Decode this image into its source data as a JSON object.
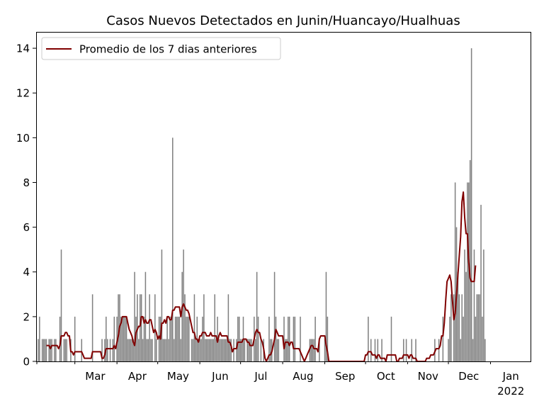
{
  "chart_data": {
    "type": "bar",
    "title": "Casos Nuevos Detectados en Junin/Huancayo/Hualhuas",
    "xlabel": "",
    "ylabel": "",
    "ylim": [
      0,
      14.7
    ],
    "x_range": [
      "2021-02-01",
      "2022-01-31"
    ],
    "yticks": [
      0,
      2,
      4,
      6,
      8,
      10,
      12,
      14
    ],
    "xticks": [
      {
        "date": "2021-03-01",
        "label": "Mar"
      },
      {
        "date": "2021-04-01",
        "label": "Apr"
      },
      {
        "date": "2021-05-01",
        "label": "May"
      },
      {
        "date": "2021-06-01",
        "label": "Jun"
      },
      {
        "date": "2021-07-01",
        "label": "Jul"
      },
      {
        "date": "2021-08-01",
        "label": "Aug"
      },
      {
        "date": "2021-09-01",
        "label": "Sep"
      },
      {
        "date": "2021-10-01",
        "label": "Oct"
      },
      {
        "date": "2021-11-01",
        "label": "Nov"
      },
      {
        "date": "2021-12-01",
        "label": "Dec"
      },
      {
        "date": "2022-01-01",
        "label": "Jan"
      }
    ],
    "year_label": "2022",
    "grid": false,
    "legend": {
      "position": "top-left",
      "entries": [
        "Promedio de los 7 dias anteriores"
      ]
    },
    "colors": {
      "bars": "#808080",
      "line": "#800000"
    },
    "series": [
      {
        "kind": "bar",
        "start": "2021-02-01",
        "values": [
          0,
          1,
          2,
          0,
          1,
          1,
          1,
          1,
          0,
          1,
          1,
          1,
          0,
          1,
          1,
          0,
          0,
          2,
          5,
          0,
          1,
          1,
          1,
          0,
          0,
          1,
          0,
          0,
          2,
          0,
          0,
          0,
          0,
          1,
          0,
          0,
          0,
          0,
          0,
          0,
          0,
          3,
          0,
          0,
          0,
          0,
          0,
          0,
          1,
          0,
          1,
          2,
          1,
          0,
          1,
          0,
          1,
          2,
          0,
          2,
          3,
          3,
          2,
          2,
          2,
          2,
          2,
          1,
          1,
          1,
          1,
          1,
          4,
          2,
          3,
          1,
          3,
          3,
          1,
          2,
          4,
          1,
          1,
          3,
          1,
          1,
          0,
          3,
          1,
          0,
          2,
          2,
          5,
          1,
          1,
          1,
          2,
          1,
          2,
          2,
          10,
          1,
          2,
          2,
          2,
          2,
          1,
          4,
          5,
          3,
          2,
          2,
          2,
          0,
          1,
          1,
          3,
          1,
          2,
          1,
          1,
          1,
          2,
          3,
          1,
          1,
          1,
          1,
          1,
          1,
          1,
          3,
          1,
          2,
          1,
          1,
          1,
          1,
          1,
          1,
          1,
          3,
          1,
          1,
          0,
          1,
          0,
          1,
          2,
          2,
          1,
          1,
          2,
          1,
          0,
          1,
          1,
          1,
          1,
          0,
          2,
          1,
          4,
          2,
          0,
          1,
          0,
          1,
          0,
          0,
          0,
          2,
          1,
          1,
          0,
          4,
          2,
          1,
          1,
          0,
          0,
          0,
          2,
          1,
          1,
          2,
          2,
          0,
          0,
          2,
          2,
          0,
          0,
          0,
          2,
          0,
          0,
          0,
          0,
          0,
          0,
          1,
          1,
          1,
          1,
          2,
          0,
          0,
          1,
          0,
          0,
          0,
          1,
          4,
          2,
          0,
          0,
          0,
          0,
          0,
          0,
          0,
          0,
          0,
          0,
          0,
          0,
          0,
          0,
          0,
          0,
          0,
          0,
          0,
          0,
          0,
          0,
          0,
          0,
          0,
          0,
          0,
          0,
          0,
          2,
          0,
          1,
          0,
          0,
          1,
          0,
          1,
          0,
          0,
          1,
          0,
          0,
          0,
          0,
          0,
          0,
          2,
          0,
          0,
          0,
          0,
          0,
          0,
          0,
          0,
          1,
          0,
          1,
          0,
          0,
          0,
          1,
          0,
          0,
          1,
          0,
          0,
          0,
          0,
          0,
          0,
          0,
          0,
          0,
          0,
          0,
          0,
          0,
          1,
          0,
          0,
          1,
          0,
          0,
          2,
          0,
          0,
          0,
          1,
          2,
          3,
          0,
          3,
          8,
          6,
          4,
          3,
          1,
          3,
          2,
          5,
          4,
          8,
          8,
          9,
          14,
          1,
          5,
          2,
          3,
          3,
          3,
          7,
          2,
          5,
          1
        ]
      },
      {
        "kind": "line",
        "name": "Promedio de los 7 dias anteriores",
        "start": "2021-02-01",
        "values": [
          null,
          null,
          null,
          null,
          null,
          null,
          null,
          0.71,
          0.71,
          0.71,
          0.57,
          0.71,
          0.71,
          0.71,
          0.71,
          0.71,
          0.57,
          0.71,
          1.14,
          1.14,
          1.14,
          1.29,
          1.29,
          1.14,
          1.14,
          0.43,
          0.43,
          0.29,
          0.43,
          0.43,
          0.43,
          0.43,
          0.43,
          0.43,
          0.29,
          0.14,
          0.14,
          0.14,
          0.14,
          0.14,
          0.14,
          0.43,
          0.43,
          0.43,
          0.43,
          0.43,
          0.43,
          0.43,
          0.14,
          0.14,
          0.29,
          0.57,
          0.57,
          0.57,
          0.57,
          0.57,
          0.57,
          0.71,
          0.57,
          0.86,
          1.14,
          1.57,
          1.71,
          2.0,
          2.0,
          2.0,
          2.0,
          1.71,
          1.43,
          1.29,
          1.14,
          0.86,
          0.71,
          1.29,
          1.43,
          1.57,
          1.57,
          2.0,
          2.0,
          1.71,
          1.86,
          1.71,
          1.71,
          1.86,
          1.86,
          1.57,
          1.29,
          1.43,
          1.29,
          1.0,
          1.14,
          1.0,
          1.71,
          1.71,
          1.86,
          1.71,
          2.0,
          2.0,
          1.86,
          1.86,
          2.29,
          2.29,
          2.43,
          2.43,
          2.43,
          2.43,
          2.0,
          2.43,
          2.57,
          2.43,
          2.29,
          2.29,
          2.14,
          1.86,
          1.57,
          1.29,
          1.29,
          1.0,
          1.0,
          0.86,
          1.14,
          1.14,
          1.29,
          1.29,
          1.29,
          1.14,
          1.14,
          1.14,
          1.29,
          1.14,
          1.14,
          1.14,
          1.14,
          0.86,
          1.14,
          1.29,
          1.14,
          1.14,
          1.14,
          1.14,
          1.14,
          0.86,
          0.86,
          0.71,
          0.43,
          0.57,
          0.57,
          0.57,
          0.86,
          0.86,
          0.86,
          0.86,
          1.0,
          1.0,
          1.0,
          0.86,
          0.86,
          0.71,
          0.71,
          0.71,
          1.0,
          1.29,
          1.43,
          1.29,
          1.29,
          1.0,
          0.86,
          0.57,
          0.14,
          0.0,
          0.14,
          0.29,
          0.29,
          0.43,
          0.71,
          1.0,
          1.43,
          1.29,
          1.14,
          1.14,
          1.14,
          1.14,
          0.57,
          0.86,
          0.86,
          0.86,
          0.71,
          0.86,
          0.86,
          0.57,
          0.57,
          0.57,
          0.57,
          0.57,
          0.43,
          0.29,
          0.14,
          0.0,
          0.14,
          0.29,
          0.43,
          0.57,
          0.71,
          0.71,
          0.57,
          0.57,
          0.57,
          0.43,
          1.0,
          1.14,
          1.14,
          1.14,
          1.14,
          0.71,
          0.43,
          0.0,
          0.0,
          0.0,
          0.0,
          0.0,
          0.0,
          0.0,
          0.0,
          0.0,
          0.0,
          0.0,
          0.0,
          0.0,
          0.0,
          0.0,
          0.0,
          0.0,
          0.0,
          0.0,
          0.0,
          0.0,
          0.0,
          0.0,
          0.0,
          0.0,
          0.0,
          0.0,
          0.29,
          0.29,
          0.43,
          0.43,
          0.43,
          0.29,
          0.29,
          0.29,
          0.14,
          0.29,
          0.29,
          0.14,
          0.14,
          0.14,
          0.14,
          0.0,
          0.29,
          0.29,
          0.29,
          0.29,
          0.29,
          0.29,
          0.29,
          0.0,
          0.0,
          0.14,
          0.14,
          0.14,
          0.29,
          0.29,
          0.29,
          0.29,
          0.14,
          0.29,
          0.29,
          0.14,
          0.14,
          0.14,
          0.0,
          0.0,
          0.0,
          0.0,
          0.0,
          0.0,
          0.0,
          0.14,
          0.14,
          0.14,
          0.29,
          0.29,
          0.29,
          0.43,
          0.57,
          0.57,
          0.57,
          0.71,
          1.14,
          1.14,
          1.71,
          2.71,
          3.57,
          3.71,
          3.86,
          3.57,
          2.71,
          1.86,
          2.14,
          3.0,
          3.86,
          4.71,
          5.57,
          7.14,
          7.57,
          6.43,
          5.71,
          5.71,
          4.43,
          3.71,
          3.57,
          3.57,
          3.57,
          4.29
        ]
      }
    ]
  }
}
